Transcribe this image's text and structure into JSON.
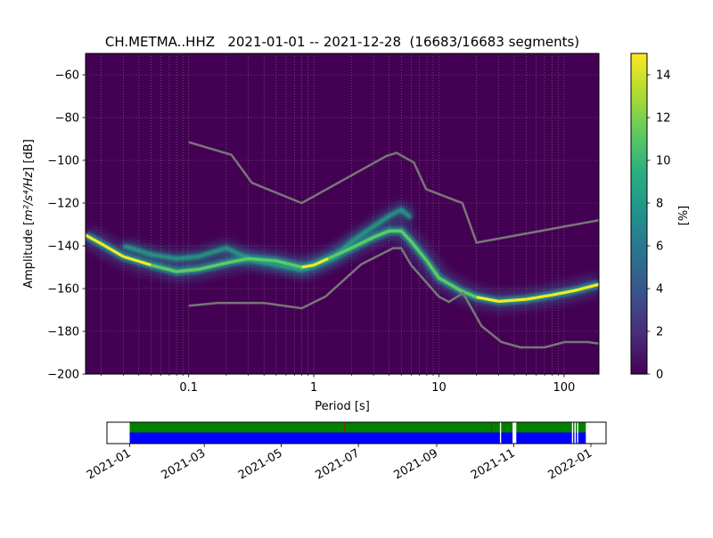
{
  "chart_data": [
    {
      "type": "heatmap",
      "title": "CH.METMA..HHZ   2021-01-01 -- 2021-12-28  (16683/16683 segments)",
      "xlabel": "Period [s]",
      "ylabel_prefix": "Amplitude [",
      "ylabel_math": "m²/s⁴/Hz",
      "ylabel_suffix": "] [dB]",
      "xscale": "log",
      "xlim": [
        0.015,
        190
      ],
      "ylim": [
        -200,
        -50
      ],
      "xticks": [
        0.1,
        1,
        10,
        100
      ],
      "xtick_labels": [
        "0.1",
        "1",
        "10",
        "100"
      ],
      "yticks": [
        -60,
        -80,
        -100,
        -120,
        -140,
        -160,
        -180,
        -200
      ],
      "ytick_labels": [
        "−60",
        "−80",
        "−100",
        "−120",
        "−140",
        "−160",
        "−180",
        "−200"
      ],
      "grid": true,
      "colorbar": {
        "label": "[%]",
        "range": [
          0,
          15
        ],
        "ticks": [
          0,
          2,
          4,
          6,
          8,
          10,
          12,
          14
        ],
        "tick_labels": [
          "0",
          "2",
          "4",
          "6",
          "8",
          "10",
          "12",
          "14"
        ],
        "colormap": "viridis"
      },
      "mode_curve": {
        "x": [
          0.015,
          0.02,
          0.03,
          0.05,
          0.08,
          0.12,
          0.2,
          0.3,
          0.5,
          0.8,
          1.0,
          1.3,
          2,
          3,
          4,
          5,
          6,
          8,
          10,
          15,
          20,
          30,
          50,
          80,
          120,
          190
        ],
        "y": [
          -135,
          -139,
          -145,
          -149,
          -152,
          -151,
          -148,
          -146,
          -147,
          -150,
          -149,
          -146,
          -141,
          -136,
          -133,
          -133,
          -138,
          -147,
          -155,
          -161,
          -164,
          -166,
          -165,
          -163,
          -161,
          -158
        ]
      },
      "secondary_curve": {
        "x": [
          0.03,
          0.05,
          0.08,
          0.12,
          0.2,
          0.3,
          0.5,
          0.8,
          1.0,
          1.5,
          2,
          3,
          4,
          5,
          6
        ],
        "y": [
          -140,
          -144,
          -146,
          -145,
          -141,
          -146,
          -149,
          -151,
          -149,
          -145,
          -138,
          -131,
          -126,
          -123,
          -127
        ]
      },
      "noise_model_high": {
        "x": [
          0.1,
          0.22,
          0.32,
          0.8,
          3.8,
          4.6,
          6.3,
          7.9,
          15.4,
          20,
          190
        ],
        "y": [
          -91.5,
          -97.4,
          -110.5,
          -120,
          -98,
          -96.5,
          -101,
          -113.5,
          -120,
          -138.5,
          -128
        ]
      },
      "noise_model_low": {
        "x": [
          0.1,
          0.17,
          0.4,
          0.8,
          1.24,
          2.4,
          4.3,
          5.0,
          6.0,
          10,
          12,
          15.6,
          21.9,
          31.6,
          45,
          70,
          101,
          154,
          190
        ],
        "y": [
          -168,
          -166.7,
          -166.7,
          -169.2,
          -163.7,
          -148.6,
          -141.1,
          -141.1,
          -149,
          -163.8,
          -166.2,
          -162.1,
          -177.5,
          -185,
          -187.5,
          -187.5,
          -185,
          -185,
          -185.7
        ]
      }
    },
    {
      "type": "bar",
      "subtype": "data-availability-timeline",
      "x_range": [
        "2020-12-14",
        "2022-01-13"
      ],
      "xtick_labels": [
        "2021-01",
        "2021-03",
        "2021-05",
        "2021-07",
        "2021-09",
        "2021-11",
        "2022-01"
      ],
      "xtick_dates": [
        "2021-01-01",
        "2021-03-01",
        "2021-05-01",
        "2021-07-01",
        "2021-09-01",
        "2021-11-01",
        "2022-01-01"
      ],
      "rows": [
        {
          "color": "#008000",
          "spans": [
            [
              "2021-01-01",
              "2021-10-21"
            ],
            [
              "2021-10-22",
              "2021-10-31"
            ],
            [
              "2021-11-03",
              "2021-12-17"
            ],
            [
              "2021-12-18",
              "2021-12-19"
            ],
            [
              "2021-12-20",
              "2021-12-21"
            ],
            [
              "2021-12-22",
              "2021-12-28"
            ]
          ]
        },
        {
          "color": "#0000ff",
          "spans": [
            [
              "2021-01-01",
              "2021-10-21"
            ],
            [
              "2021-10-22",
              "2021-10-31"
            ],
            [
              "2021-11-03",
              "2021-12-17"
            ],
            [
              "2021-12-18",
              "2021-12-19"
            ],
            [
              "2021-12-20",
              "2021-12-21"
            ],
            [
              "2021-12-22",
              "2021-12-28"
            ]
          ]
        }
      ],
      "markers": [
        {
          "date": "2021-06-20",
          "color": "#cc0000"
        },
        {
          "date": "2021-10-14",
          "color": "#cc0000"
        }
      ]
    }
  ]
}
